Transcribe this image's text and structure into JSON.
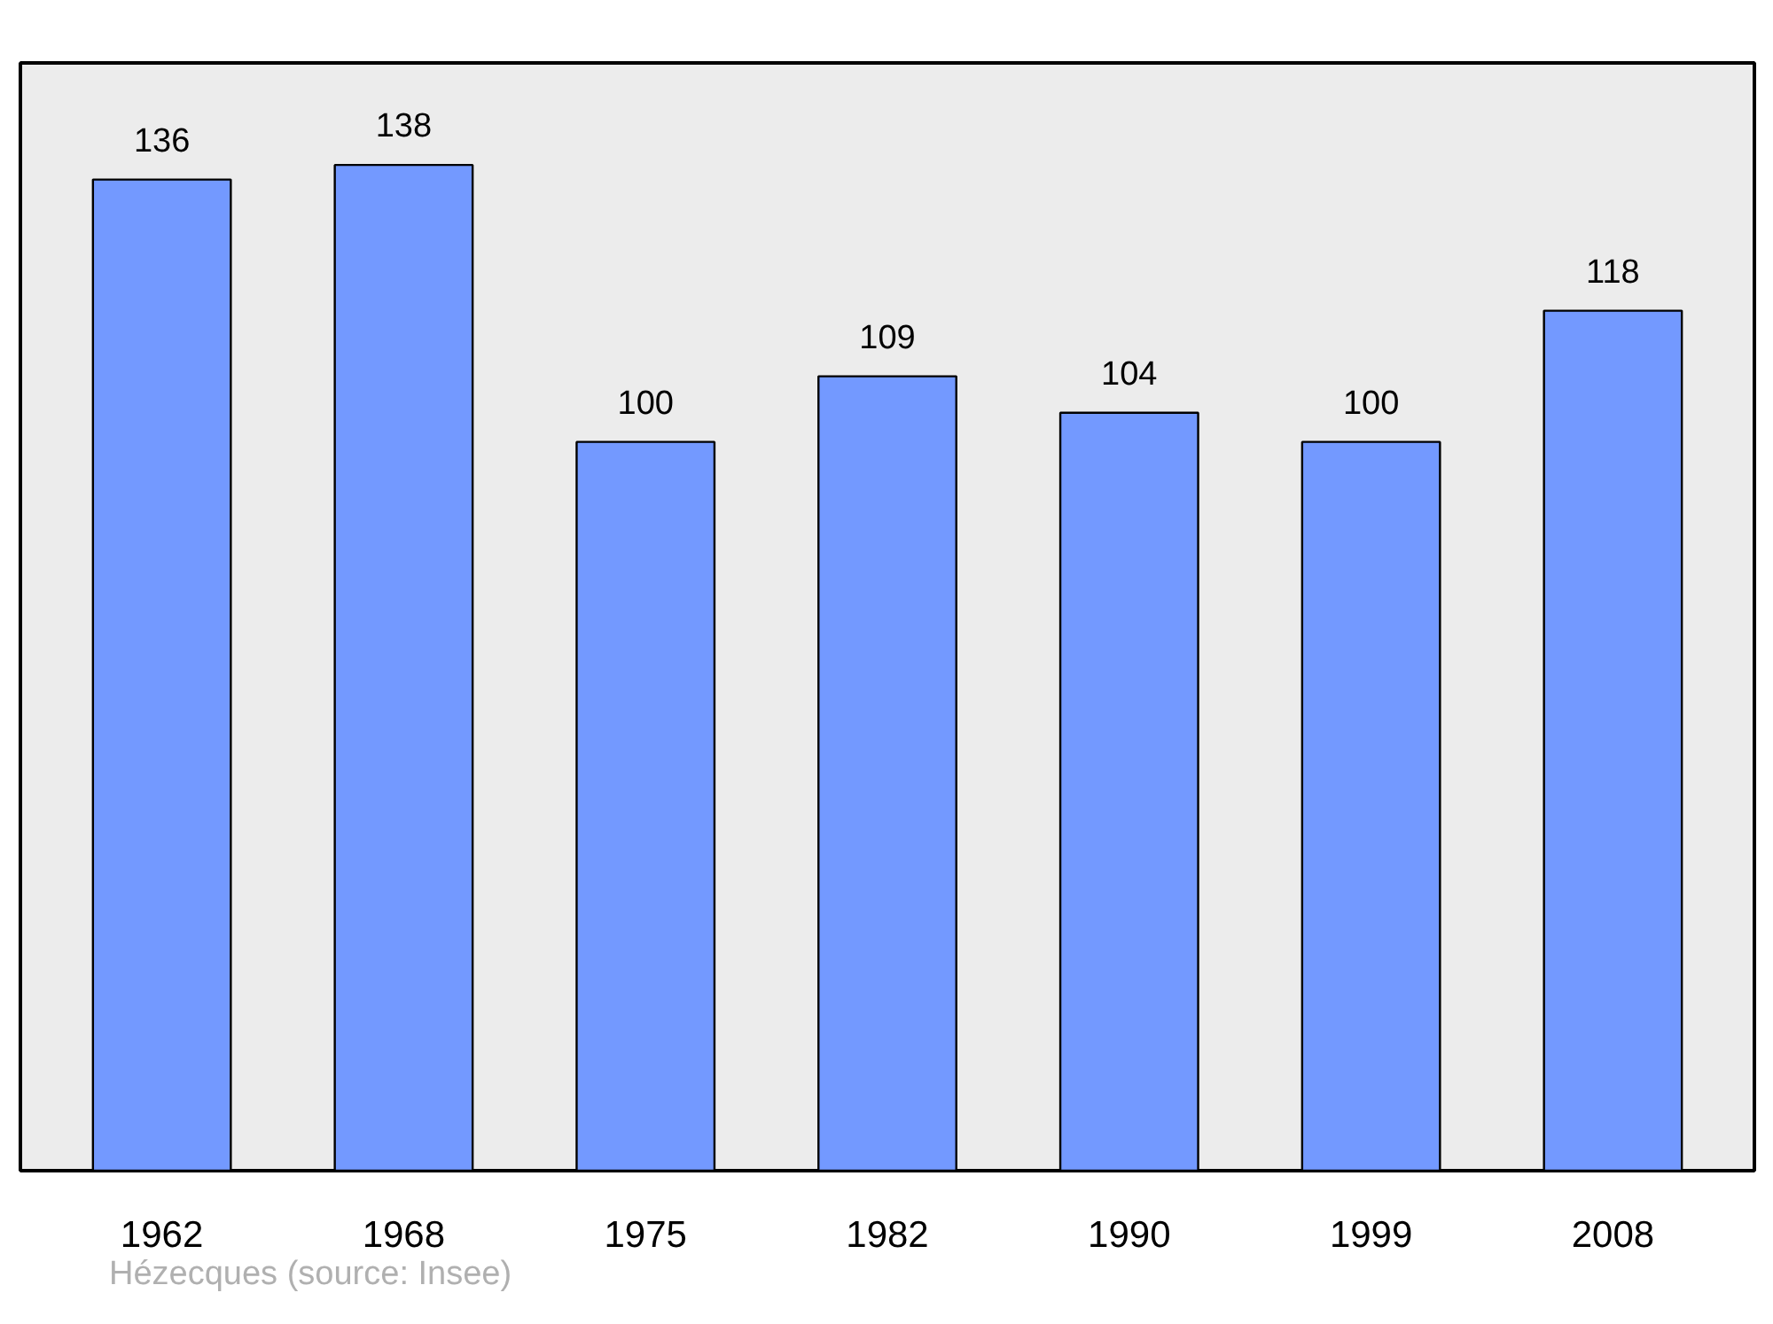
{
  "chart_data": {
    "type": "bar",
    "categories": [
      "1962",
      "1968",
      "1975",
      "1982",
      "1990",
      "1999",
      "2008"
    ],
    "values": [
      136,
      138,
      100,
      109,
      104,
      100,
      118
    ],
    "color": "#7399ff",
    "data_labels": true,
    "ylim": [
      0,
      152
    ],
    "tick_labels": "x",
    "grid": false,
    "annotations": [
      "Hézecques    (source: Insee)"
    ]
  }
}
